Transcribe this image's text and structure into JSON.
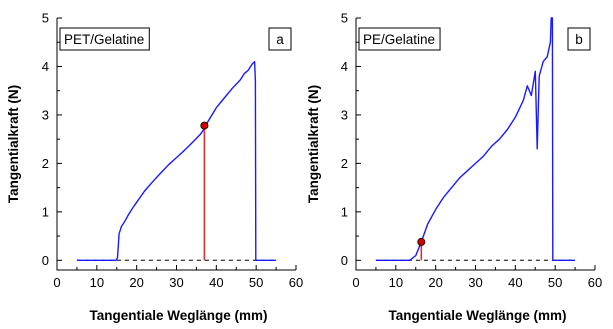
{
  "chart_data": [
    {
      "type": "line",
      "panel_label": "PET/Gelatine",
      "panel_letter": "a",
      "xlabel": "Tangentiale Weglänge (mm)",
      "ylabel": "Tangentialkraft (N)",
      "xlim": [
        0,
        60
      ],
      "ylim": [
        -0.2,
        5
      ],
      "x_ticks": [
        0,
        10,
        20,
        30,
        40,
        50,
        60
      ],
      "y_ticks": [
        0,
        1,
        2,
        3,
        4,
        5
      ],
      "grid": false,
      "colors": {
        "curve": "#1a1aff",
        "marker_line": "#e03030",
        "marker_fill": "#cc0000",
        "baseline": "#000000"
      },
      "baseline": {
        "y": 0,
        "x_from": 5,
        "x_to": 55,
        "style": "dashed"
      },
      "series": [
        {
          "values_xy": [
            [
              5,
              0
            ],
            [
              14.8,
              0
            ],
            [
              15.2,
              0.05
            ],
            [
              15.6,
              0.55
            ],
            [
              16.2,
              0.7
            ],
            [
              17,
              0.8
            ],
            [
              18,
              0.95
            ],
            [
              19,
              1.08
            ],
            [
              20,
              1.2
            ],
            [
              22,
              1.43
            ],
            [
              24,
              1.62
            ],
            [
              26,
              1.8
            ],
            [
              28,
              1.97
            ],
            [
              30,
              2.12
            ],
            [
              32,
              2.27
            ],
            [
              34,
              2.43
            ],
            [
              36,
              2.6
            ],
            [
              37,
              2.72
            ],
            [
              38,
              2.88
            ],
            [
              40,
              3.15
            ],
            [
              42,
              3.35
            ],
            [
              44,
              3.55
            ],
            [
              46,
              3.72
            ],
            [
              47,
              3.85
            ],
            [
              48,
              3.92
            ],
            [
              49,
              4.05
            ],
            [
              49.6,
              4.1
            ],
            [
              49.8,
              3.7
            ],
            [
              49.9,
              0
            ],
            [
              55,
              0
            ]
          ]
        }
      ],
      "marker": {
        "x": 37,
        "y": 2.78
      }
    },
    {
      "type": "line",
      "panel_label": "PE/Gelatine",
      "panel_letter": "b",
      "xlabel": "Tangentiale Weglänge (mm)",
      "ylabel": "Tangentialkraft (N)",
      "xlim": [
        0,
        60
      ],
      "ylim": [
        -0.2,
        5
      ],
      "x_ticks": [
        0,
        10,
        20,
        30,
        40,
        50,
        60
      ],
      "y_ticks": [
        0,
        1,
        2,
        3,
        4,
        5
      ],
      "grid": false,
      "colors": {
        "curve": "#1a1aff",
        "marker_line": "#e03030",
        "marker_fill": "#cc0000",
        "baseline": "#000000"
      },
      "baseline": {
        "y": 0,
        "x_from": 5,
        "x_to": 55,
        "style": "dashed"
      },
      "series": [
        {
          "values_xy": [
            [
              5,
              0
            ],
            [
              13.5,
              0
            ],
            [
              15,
              0.1
            ],
            [
              16.4,
              0.38
            ],
            [
              18,
              0.75
            ],
            [
              20,
              1.05
            ],
            [
              22,
              1.3
            ],
            [
              24,
              1.5
            ],
            [
              26,
              1.7
            ],
            [
              28,
              1.85
            ],
            [
              30,
              2.0
            ],
            [
              32,
              2.15
            ],
            [
              34,
              2.35
            ],
            [
              36,
              2.5
            ],
            [
              38,
              2.7
            ],
            [
              40,
              2.95
            ],
            [
              42,
              3.3
            ],
            [
              43,
              3.6
            ],
            [
              44,
              3.4
            ],
            [
              45,
              3.9
            ],
            [
              45.5,
              2.3
            ],
            [
              46,
              3.8
            ],
            [
              47,
              4.1
            ],
            [
              48,
              4.2
            ],
            [
              48.8,
              4.5
            ],
            [
              49,
              5.0
            ],
            [
              49.3,
              5.0
            ],
            [
              49.4,
              0
            ],
            [
              55,
              0
            ]
          ]
        }
      ],
      "marker": {
        "x": 16.4,
        "y": 0.38
      }
    }
  ]
}
